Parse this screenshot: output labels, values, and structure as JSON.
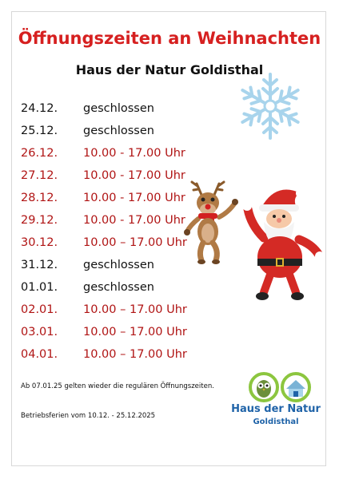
{
  "title": "Öffnungszeiten an Weihnachten",
  "subtitle": "Haus der Natur Goldisthal",
  "schedule": [
    {
      "date": "24.12.",
      "hours": "geschlossen",
      "open": false
    },
    {
      "date": "25.12.",
      "hours": "geschlossen",
      "open": false
    },
    {
      "date": "26.12.",
      "hours": "10.00 - 17.00 Uhr",
      "open": true
    },
    {
      "date": "27.12.",
      "hours": "10.00 - 17.00 Uhr",
      "open": true
    },
    {
      "date": "28.12.",
      "hours": "10.00 - 17.00 Uhr",
      "open": true
    },
    {
      "date": "29.12.",
      "hours": "10.00 - 17.00 Uhr",
      "open": true
    },
    {
      "date": "30.12.",
      "hours": "10.00 – 17.00 Uhr",
      "open": true
    },
    {
      "date": "31.12.",
      "hours": "geschlossen",
      "open": false
    },
    {
      "date": "01.01.",
      "hours": "geschlossen",
      "open": false
    },
    {
      "date": "02.01.",
      "hours": "10.00 – 17.00 Uhr",
      "open": true
    },
    {
      "date": "03.01.",
      "hours": "10.00 – 17.00 Uhr",
      "open": true
    },
    {
      "date": "04.01.",
      "hours": "10.00 – 17.00 Uhr",
      "open": true
    }
  ],
  "notes": {
    "regular": "Ab 07.01.25 gelten wieder die regulären Öffnungszeiten.",
    "holiday": "Betriebsferien vom 10.12. - 25.12.2025"
  },
  "logo": {
    "name": "Haus der Natur",
    "place": "Goldisthal"
  },
  "colors": {
    "title": "#d62020",
    "open_hours": "#b01414",
    "closed": "#111111",
    "logo_blue": "#1f63a8",
    "logo_green": "#8cc63f",
    "snowflake": "#a8d4ec"
  },
  "decorations": [
    "snowflake-icon",
    "reindeer-illustration",
    "santa-illustration",
    "owl-icon",
    "house-icon"
  ]
}
